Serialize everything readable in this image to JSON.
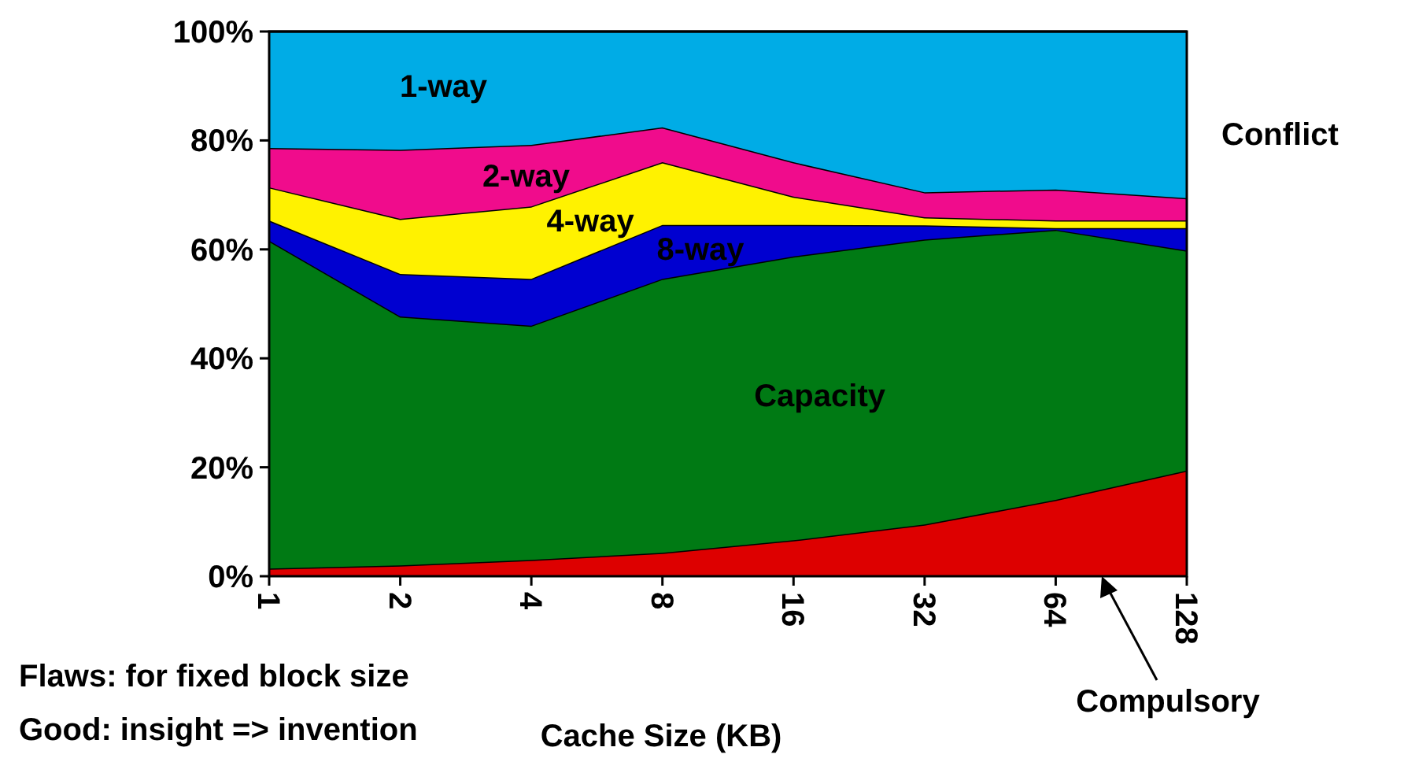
{
  "chart_data": {
    "type": "area",
    "stacked": true,
    "xlabel": "Cache Size (KB)",
    "categories": [
      "1",
      "2",
      "4",
      "8",
      "16",
      "32",
      "64",
      "128"
    ],
    "ylim": [
      0,
      100
    ],
    "yticks": [
      {
        "value": 0,
        "label": "0%"
      },
      {
        "value": 20,
        "label": "20%"
      },
      {
        "value": 40,
        "label": "40%"
      },
      {
        "value": 60,
        "label": "60%"
      },
      {
        "value": 80,
        "label": "80%"
      },
      {
        "value": 100,
        "label": "100%"
      }
    ],
    "grid": false,
    "series": [
      {
        "name": "Compulsory",
        "color": "#dd0000",
        "values": [
          1.4,
          2,
          3,
          4.3,
          6.6,
          9.5,
          14,
          19.4
        ]
      },
      {
        "name": "Capacity",
        "color": "#007a14",
        "values": [
          60.2,
          45.7,
          43,
          50.3,
          52.1,
          52.3,
          49.6,
          40.4
        ]
      },
      {
        "name": "8-way",
        "color": "#0000d0",
        "values": [
          3.7,
          7.8,
          8.6,
          9.9,
          5.8,
          2.6,
          0.3,
          4.1
        ]
      },
      {
        "name": "4-way",
        "color": "#fff200",
        "values": [
          6.1,
          10.1,
          13.3,
          11.5,
          5.2,
          1.5,
          1.4,
          1.4
        ]
      },
      {
        "name": "2-way",
        "color": "#f00c8c",
        "values": [
          7.2,
          12.7,
          11.3,
          6.4,
          6.3,
          4.6,
          5.7,
          4.1
        ]
      },
      {
        "name": "1-way",
        "color": "#00ace6",
        "values": [
          21.4,
          21.7,
          20.8,
          17.6,
          24,
          29.5,
          29,
          30.6
        ]
      }
    ],
    "annotations": [
      "Conflict",
      "Flaws: for fixed block size",
      "Good: insight => invention"
    ]
  }
}
